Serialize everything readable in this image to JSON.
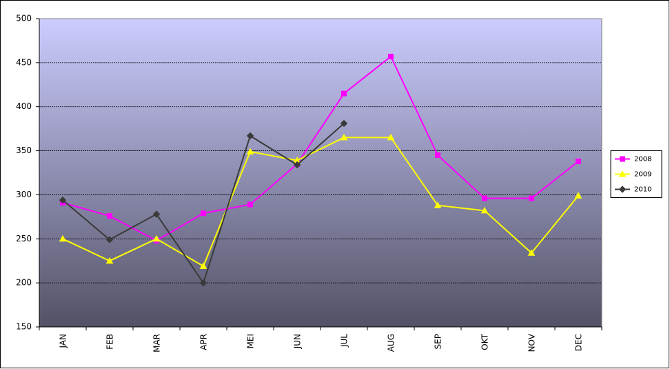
{
  "chart_data": {
    "type": "line",
    "categories": [
      "JAN",
      "FEB",
      "MAR",
      "APR",
      "MEI",
      "JUN",
      "JUL",
      "AUG",
      "SEP",
      "OKT",
      "NOV",
      "DEC"
    ],
    "series": [
      {
        "name": "2008",
        "color": "#ff00ff",
        "marker": "square",
        "values": [
          291,
          276,
          248,
          279,
          289,
          335,
          415,
          457,
          345,
          296,
          296,
          338
        ]
      },
      {
        "name": "2009",
        "color": "#ffff00",
        "marker": "triangle",
        "values": [
          250,
          225,
          250,
          219,
          349,
          339,
          365,
          365,
          288,
          282,
          234,
          299
        ]
      },
      {
        "name": "2010",
        "color": "#3a3a3a",
        "marker": "diamond",
        "values": [
          294,
          249,
          278,
          200,
          367,
          334,
          381,
          null,
          null,
          null,
          null,
          null
        ]
      }
    ],
    "ylim": [
      150,
      500
    ],
    "yticks": [
      150,
      200,
      250,
      300,
      350,
      400,
      450,
      500
    ],
    "grid": true,
    "legend": "right"
  }
}
